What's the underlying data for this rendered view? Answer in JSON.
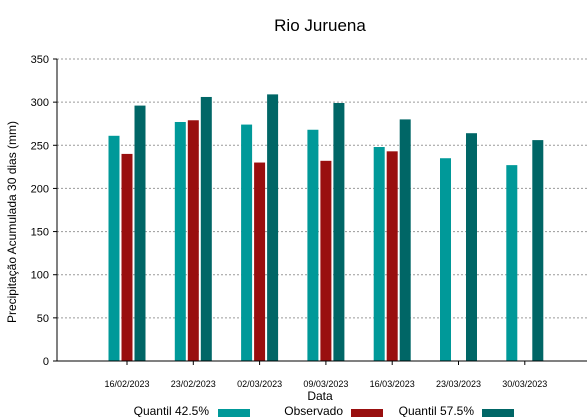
{
  "chart_data": {
    "type": "bar",
    "title": "Rio Juruena",
    "xlabel": "Data",
    "ylabel": "Precipitação Acumulada 30 dias (mm)",
    "ylim": [
      0,
      350
    ],
    "yticks": [
      0,
      50,
      100,
      150,
      200,
      250,
      300,
      350
    ],
    "grid": true,
    "legend_position": "bottom",
    "categories": [
      "16/02/2023",
      "23/02/2023",
      "02/03/2023",
      "09/03/2023",
      "16/03/2023",
      "23/03/2023",
      "30/03/2023"
    ],
    "series": [
      {
        "name": "Quantil 42.5%",
        "color": "#009999",
        "values": [
          261,
          277,
          274,
          268,
          248,
          235,
          227
        ]
      },
      {
        "name": "Observado",
        "color": "#990f0f",
        "values": [
          240,
          279,
          230,
          232,
          243,
          null,
          null
        ]
      },
      {
        "name": "Quantil 57.5%",
        "color": "#006666",
        "values": [
          296,
          306,
          309,
          299,
          280,
          264,
          256
        ]
      }
    ]
  }
}
